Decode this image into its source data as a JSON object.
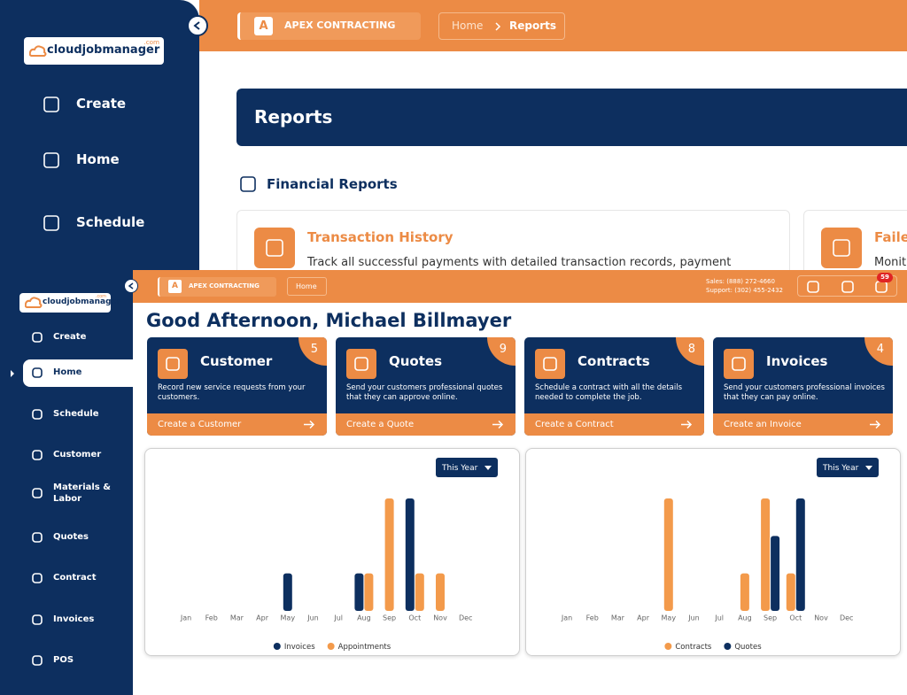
{
  "background_screen": {
    "logo": "cloudjobmanager",
    "logo_suffix": ".com",
    "nav": [
      "Create",
      "Home",
      "Schedule"
    ],
    "company_initial": "A",
    "company": "APEX CONTRACTING",
    "breadcrumb": [
      "Home",
      "Reports"
    ],
    "page_title": "Reports",
    "section_title": "Financial Reports",
    "report_cards": [
      {
        "title": "Transaction History",
        "description": "Track all successful payments with detailed transaction records, payment"
      },
      {
        "title": "Faile",
        "description": "Monit"
      }
    ]
  },
  "foreground_screen": {
    "logo": "cloudjobmanager",
    "logo_suffix": ".com",
    "nav": [
      "Create",
      "Home",
      "Schedule",
      "Customer",
      "Materials & Labor",
      "Quotes",
      "Contract",
      "Invoices",
      "POS"
    ],
    "company_initial": "A",
    "company": "APEX CONTRACTING",
    "breadcrumb": [
      "Home"
    ],
    "sales": "Sales: (888) 272-4660",
    "support": "Support: (302) 455-2432",
    "notifications": 59,
    "greeting": "Good Afternoon, Michael Billmayer",
    "tiles": [
      {
        "title": "Customer",
        "count": 5,
        "description": "Record new service requests from your customers.",
        "action": "Create a Customer"
      },
      {
        "title": "Quotes",
        "count": 9,
        "description": "Send your customers professional quotes that they can approve online.",
        "action": "Create a Quote"
      },
      {
        "title": "Contracts",
        "count": 8,
        "description": "Schedule a contract with all the details needed to complete the job.",
        "action": "Create a Contract"
      },
      {
        "title": "Invoices",
        "count": 4,
        "description": "Send your customers professional invoices that they can pay online.",
        "action": "Create an Invoice"
      }
    ]
  },
  "chart_data": [
    {
      "type": "bar",
      "filter": "This Year",
      "categories": [
        "Jan",
        "Feb",
        "Mar",
        "Apr",
        "May",
        "Jun",
        "Jul",
        "Aug",
        "Sep",
        "Oct",
        "Nov",
        "Dec"
      ],
      "ylim": [
        0,
        3
      ],
      "series": [
        {
          "name": "Invoices",
          "color": "#0d2f5f",
          "values": [
            0,
            0,
            0,
            0,
            1,
            0,
            0,
            1,
            0,
            3,
            0,
            0
          ]
        },
        {
          "name": "Appointments",
          "color": "#f39a4b",
          "values": [
            0,
            0,
            0,
            0,
            0,
            0,
            0,
            1,
            3,
            1,
            1,
            0
          ]
        }
      ]
    },
    {
      "type": "bar",
      "filter": "This Year",
      "categories": [
        "Jan",
        "Feb",
        "Mar",
        "Apr",
        "May",
        "Jun",
        "Jul",
        "Aug",
        "Sep",
        "Oct",
        "Nov",
        "Dec"
      ],
      "ylim": [
        0,
        3
      ],
      "series": [
        {
          "name": "Contracts",
          "color": "#f39a4b",
          "values": [
            0,
            0,
            0,
            0,
            3,
            0,
            0,
            1,
            3,
            1,
            0,
            0
          ]
        },
        {
          "name": "Quotes",
          "color": "#0d2f5f",
          "values": [
            0,
            0,
            0,
            0,
            0,
            0,
            0,
            0,
            2,
            3,
            0,
            0
          ]
        }
      ]
    }
  ]
}
